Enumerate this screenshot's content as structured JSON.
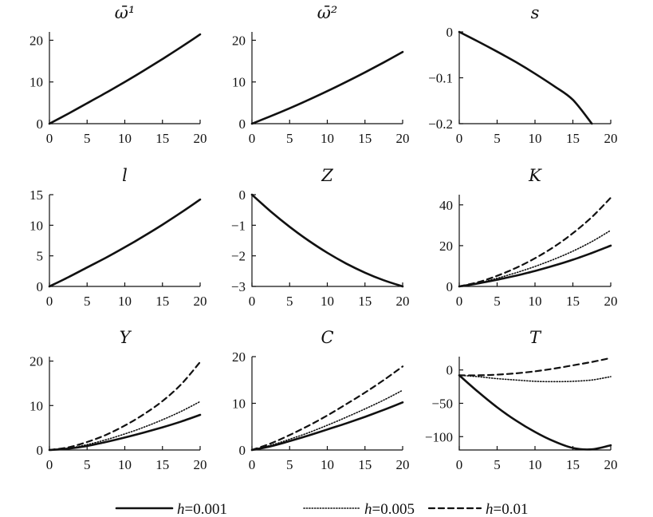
{
  "chart_data": [
    {
      "type": "line",
      "title": "ω̄¹",
      "xlim": [
        0,
        20
      ],
      "ylim": [
        0,
        22
      ],
      "x_ticks": [
        "0",
        "5",
        "10",
        "15",
        "20"
      ],
      "y_ticks": [
        {
          "v": 0,
          "label": "0"
        },
        {
          "v": 10,
          "label": "10"
        },
        {
          "v": 20,
          "label": "20"
        }
      ],
      "x": [
        0,
        2.5,
        5,
        7.5,
        10,
        12.5,
        15,
        17.5,
        20
      ],
      "series": [
        {
          "style": "solid",
          "values": [
            0,
            2.4,
            4.9,
            7.4,
            10.0,
            12.7,
            15.5,
            18.4,
            21.4
          ]
        }
      ]
    },
    {
      "type": "line",
      "title": "ω̄²",
      "xlim": [
        0,
        20
      ],
      "ylim": [
        0,
        22
      ],
      "x_ticks": [
        "0",
        "5",
        "10",
        "15",
        "20"
      ],
      "y_ticks": [
        {
          "v": 0,
          "label": "0"
        },
        {
          "v": 10,
          "label": "10"
        },
        {
          "v": 20,
          "label": "20"
        }
      ],
      "x": [
        0,
        2.5,
        5,
        7.5,
        10,
        12.5,
        15,
        17.5,
        20
      ],
      "series": [
        {
          "style": "solid",
          "values": [
            0,
            1.8,
            3.7,
            5.7,
            7.8,
            10.0,
            12.3,
            14.7,
            17.2
          ]
        }
      ]
    },
    {
      "type": "line",
      "title": "s",
      "xlim": [
        0,
        20
      ],
      "ylim": [
        -0.2,
        0
      ],
      "x_ticks": [
        "0",
        "5",
        "10",
        "15",
        "20"
      ],
      "y_ticks": [
        {
          "v": 0,
          "label": "0"
        },
        {
          "v": -0.1,
          "label": "−0.1"
        },
        {
          "v": -0.2,
          "label": "−0.2"
        }
      ],
      "x": [
        0,
        2.5,
        5,
        7.5,
        10,
        12.5,
        15,
        17.5
      ],
      "series": [
        {
          "style": "solid",
          "values": [
            0,
            -0.021,
            -0.043,
            -0.066,
            -0.091,
            -0.118,
            -0.148,
            -0.2
          ]
        }
      ]
    },
    {
      "type": "line",
      "title": "l",
      "xlim": [
        0,
        20
      ],
      "ylim": [
        0,
        15
      ],
      "x_ticks": [
        "0",
        "5",
        "10",
        "15",
        "20"
      ],
      "y_ticks": [
        {
          "v": 0,
          "label": "0"
        },
        {
          "v": 5,
          "label": "5"
        },
        {
          "v": 10,
          "label": "10"
        },
        {
          "v": 15,
          "label": "15"
        }
      ],
      "x": [
        0,
        2.5,
        5,
        7.5,
        10,
        12.5,
        15,
        17.5,
        20
      ],
      "series": [
        {
          "style": "solid",
          "values": [
            0,
            1.5,
            3.1,
            4.7,
            6.4,
            8.2,
            10.1,
            12.1,
            14.2
          ]
        }
      ]
    },
    {
      "type": "line",
      "title": "Z",
      "xlim": [
        0,
        20
      ],
      "ylim": [
        -3,
        0
      ],
      "x_ticks": [
        "0",
        "5",
        "10",
        "15",
        "20"
      ],
      "y_ticks": [
        {
          "v": 0,
          "label": "0"
        },
        {
          "v": -1,
          "label": "−1"
        },
        {
          "v": -2,
          "label": "−2"
        },
        {
          "v": -3,
          "label": "−3"
        }
      ],
      "x": [
        0,
        2.5,
        5,
        7.5,
        10,
        12.5,
        15,
        17.5,
        20
      ],
      "series": [
        {
          "style": "solid",
          "values": [
            0,
            -0.55,
            -1.05,
            -1.5,
            -1.9,
            -2.25,
            -2.55,
            -2.8,
            -3.0
          ]
        }
      ]
    },
    {
      "type": "line",
      "title": "K",
      "xlim": [
        0,
        20
      ],
      "ylim": [
        0,
        45
      ],
      "x_ticks": [
        "0",
        "5",
        "10",
        "15",
        "20"
      ],
      "y_ticks": [
        {
          "v": 0,
          "label": "0"
        },
        {
          "v": 20,
          "label": "20"
        },
        {
          "v": 40,
          "label": "40"
        }
      ],
      "x": [
        0,
        2.5,
        5,
        7.5,
        10,
        12.5,
        15,
        17.5,
        20
      ],
      "series": [
        {
          "style": "solid",
          "values": [
            0,
            1.5,
            3.3,
            5.3,
            7.6,
            10.2,
            13.1,
            16.4,
            20.0
          ]
        },
        {
          "style": "dotted",
          "values": [
            0,
            1.7,
            4.0,
            6.7,
            9.8,
            13.3,
            17.3,
            22.0,
            27.5
          ]
        },
        {
          "style": "dashed",
          "values": [
            0,
            2.1,
            5.2,
            9.1,
            13.8,
            19.4,
            26.1,
            34.0,
            43.5
          ]
        }
      ]
    },
    {
      "type": "line",
      "title": "Y",
      "xlim": [
        0,
        20
      ],
      "ylim": [
        0,
        21
      ],
      "x_ticks": [
        "0",
        "5",
        "10",
        "15",
        "20"
      ],
      "y_ticks": [
        {
          "v": 0,
          "label": "0"
        },
        {
          "v": 10,
          "label": "10"
        },
        {
          "v": 20,
          "label": "20"
        }
      ],
      "x": [
        0,
        2.5,
        5,
        7.5,
        10,
        12.5,
        15,
        17.5,
        20
      ],
      "series": [
        {
          "style": "solid",
          "values": [
            0,
            0.3,
            0.9,
            1.8,
            2.8,
            3.9,
            5.1,
            6.4,
            7.9
          ]
        },
        {
          "style": "dotted",
          "values": [
            0,
            0.4,
            1.2,
            2.3,
            3.6,
            5.1,
            6.8,
            8.7,
            10.9
          ]
        },
        {
          "style": "dashed",
          "values": [
            0,
            0.6,
            1.8,
            3.4,
            5.5,
            8.0,
            11.0,
            14.8,
            19.8
          ]
        }
      ]
    },
    {
      "type": "line",
      "title": "C",
      "xlim": [
        0,
        20
      ],
      "ylim": [
        0,
        20
      ],
      "x_ticks": [
        "0",
        "5",
        "10",
        "15",
        "20"
      ],
      "y_ticks": [
        {
          "v": 0,
          "label": "0"
        },
        {
          "v": 10,
          "label": "10"
        },
        {
          "v": 20,
          "label": "20"
        }
      ],
      "x": [
        0,
        2.5,
        5,
        7.5,
        10,
        12.5,
        15,
        17.5,
        20
      ],
      "series": [
        {
          "style": "solid",
          "values": [
            0,
            0.8,
            1.9,
            3.1,
            4.4,
            5.7,
            7.1,
            8.6,
            10.2
          ]
        },
        {
          "style": "dotted",
          "values": [
            0,
            1.0,
            2.3,
            3.7,
            5.3,
            7.0,
            8.8,
            10.7,
            12.8
          ]
        },
        {
          "style": "dashed",
          "values": [
            0,
            1.4,
            3.2,
            5.2,
            7.4,
            9.8,
            12.3,
            15.0,
            17.9
          ]
        }
      ]
    },
    {
      "type": "line",
      "title": "T",
      "xlim": [
        0,
        20
      ],
      "ylim": [
        -120,
        20
      ],
      "x_ticks": [
        "0",
        "5",
        "10",
        "15",
        "20"
      ],
      "y_ticks": [
        {
          "v": 0,
          "label": "0"
        },
        {
          "v": -50,
          "label": "−50"
        },
        {
          "v": -100,
          "label": "−100"
        }
      ],
      "x": [
        0,
        2.5,
        5,
        7.5,
        10,
        12.5,
        15,
        17.5,
        20
      ],
      "series": [
        {
          "style": "solid",
          "values": [
            -8,
            -33,
            -56,
            -76,
            -93,
            -107,
            -117,
            -119,
            -113
          ]
        },
        {
          "style": "dotted",
          "values": [
            -8,
            -10,
            -13,
            -15,
            -17,
            -17.5,
            -17,
            -15,
            -10
          ]
        },
        {
          "style": "dashed",
          "values": [
            -8,
            -8,
            -7,
            -5,
            -2,
            2,
            7,
            12,
            18
          ]
        }
      ]
    }
  ],
  "legend": {
    "placement": "bottom",
    "entries": [
      {
        "style": "solid",
        "var": "h",
        "value": "=0.001"
      },
      {
        "style": "dotted",
        "var": "h",
        "value": "=0.005"
      },
      {
        "style": "dashed",
        "var": "h",
        "value": "=0.01"
      }
    ]
  }
}
